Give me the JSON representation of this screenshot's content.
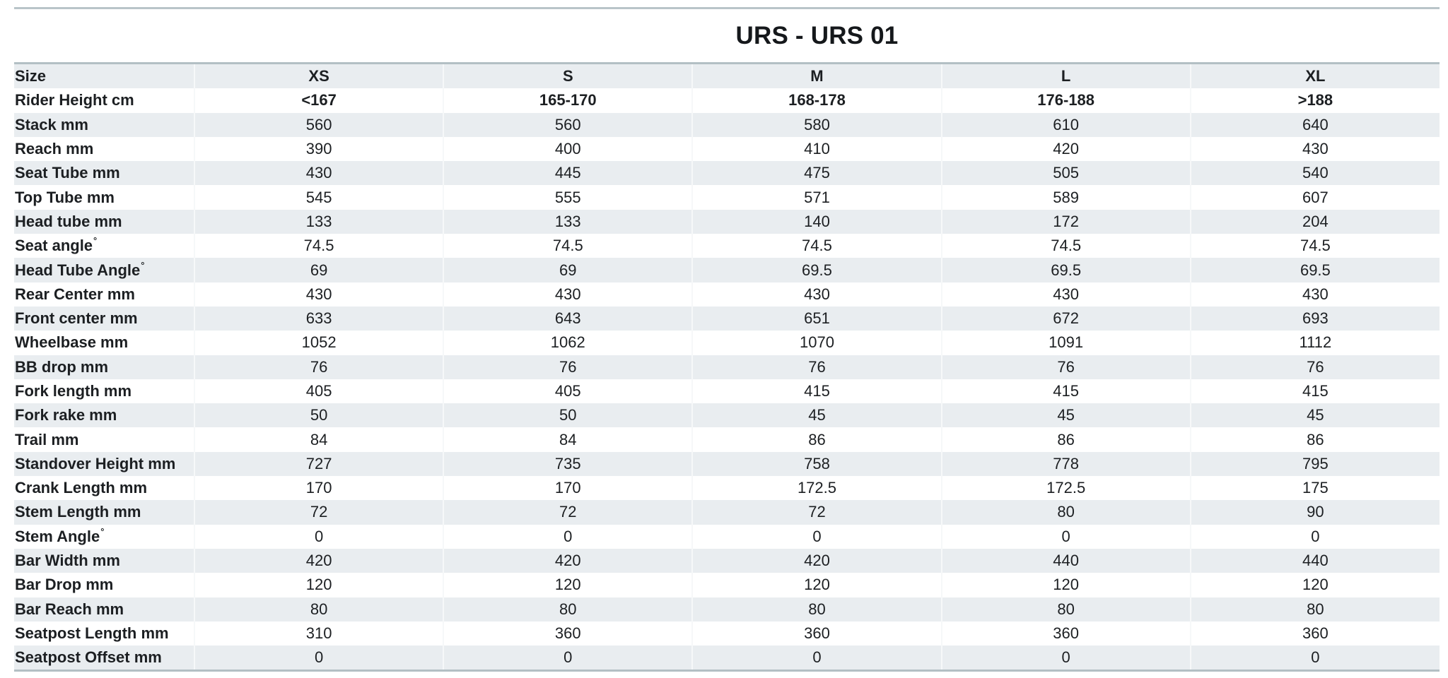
{
  "title": "URS - URS 01",
  "sizes": [
    "XS",
    "S",
    "M",
    "L",
    "XL"
  ],
  "rows": [
    {
      "label": "Size",
      "unit": "",
      "bold": true,
      "values": [
        "XS",
        "S",
        "M",
        "L",
        "XL"
      ]
    },
    {
      "label": "Rider Height cm",
      "unit": "",
      "bold": true,
      "values": [
        "<167",
        "165-170",
        "168-178",
        "176-188",
        ">188"
      ]
    },
    {
      "label": "Stack mm",
      "unit": "",
      "values": [
        "560",
        "560",
        "580",
        "610",
        "640"
      ]
    },
    {
      "label": "Reach mm",
      "unit": "",
      "values": [
        "390",
        "400",
        "410",
        "420",
        "430"
      ]
    },
    {
      "label": "Seat Tube mm",
      "unit": "",
      "values": [
        "430",
        "445",
        "475",
        "505",
        "540"
      ]
    },
    {
      "label": "Top Tube mm",
      "unit": "",
      "values": [
        "545",
        "555",
        "571",
        "589",
        "607"
      ]
    },
    {
      "label": "Head tube mm",
      "unit": "",
      "values": [
        "133",
        "133",
        "140",
        "172",
        "204"
      ]
    },
    {
      "label": "Seat angle",
      "unit": "°",
      "values": [
        "74.5",
        "74.5",
        "74.5",
        "74.5",
        "74.5"
      ]
    },
    {
      "label": "Head Tube Angle",
      "unit": "°",
      "values": [
        "69",
        "69",
        "69.5",
        "69.5",
        "69.5"
      ]
    },
    {
      "label": "Rear Center mm",
      "unit": "",
      "values": [
        "430",
        "430",
        "430",
        "430",
        "430"
      ]
    },
    {
      "label": "Front center mm",
      "unit": "",
      "values": [
        "633",
        "643",
        "651",
        "672",
        "693"
      ]
    },
    {
      "label": "Wheelbase mm",
      "unit": "",
      "values": [
        "1052",
        "1062",
        "1070",
        "1091",
        "1112"
      ]
    },
    {
      "label": "BB drop mm",
      "unit": "",
      "values": [
        "76",
        "76",
        "76",
        "76",
        "76"
      ]
    },
    {
      "label": "Fork length mm",
      "unit": "",
      "values": [
        "405",
        "405",
        "415",
        "415",
        "415"
      ]
    },
    {
      "label": "Fork rake mm",
      "unit": "",
      "values": [
        "50",
        "50",
        "45",
        "45",
        "45"
      ]
    },
    {
      "label": "Trail mm",
      "unit": "",
      "values": [
        "84",
        "84",
        "86",
        "86",
        "86"
      ]
    },
    {
      "label": "Standover Height mm",
      "unit": "",
      "values": [
        "727",
        "735",
        "758",
        "778",
        "795"
      ]
    },
    {
      "label": "Crank Length mm",
      "unit": "",
      "values": [
        "170",
        "170",
        "172.5",
        "172.5",
        "175"
      ]
    },
    {
      "label": "Stem Length mm",
      "unit": "",
      "values": [
        "72",
        "72",
        "72",
        "80",
        "90"
      ]
    },
    {
      "label": "Stem Angle",
      "unit": "°",
      "values": [
        "0",
        "0",
        "0",
        "0",
        "0"
      ]
    },
    {
      "label": "Bar Width mm",
      "unit": "",
      "values": [
        "420",
        "420",
        "420",
        "440",
        "440"
      ]
    },
    {
      "label": "Bar Drop mm",
      "unit": "",
      "values": [
        "120",
        "120",
        "120",
        "120",
        "120"
      ]
    },
    {
      "label": "Bar Reach mm",
      "unit": "",
      "values": [
        "80",
        "80",
        "80",
        "80",
        "80"
      ]
    },
    {
      "label": "Seatpost Length mm",
      "unit": "",
      "values": [
        "310",
        "360",
        "360",
        "360",
        "360"
      ]
    },
    {
      "label": "Seatpost Offset mm",
      "unit": "",
      "values": [
        "0",
        "0",
        "0",
        "0",
        "0"
      ]
    }
  ]
}
